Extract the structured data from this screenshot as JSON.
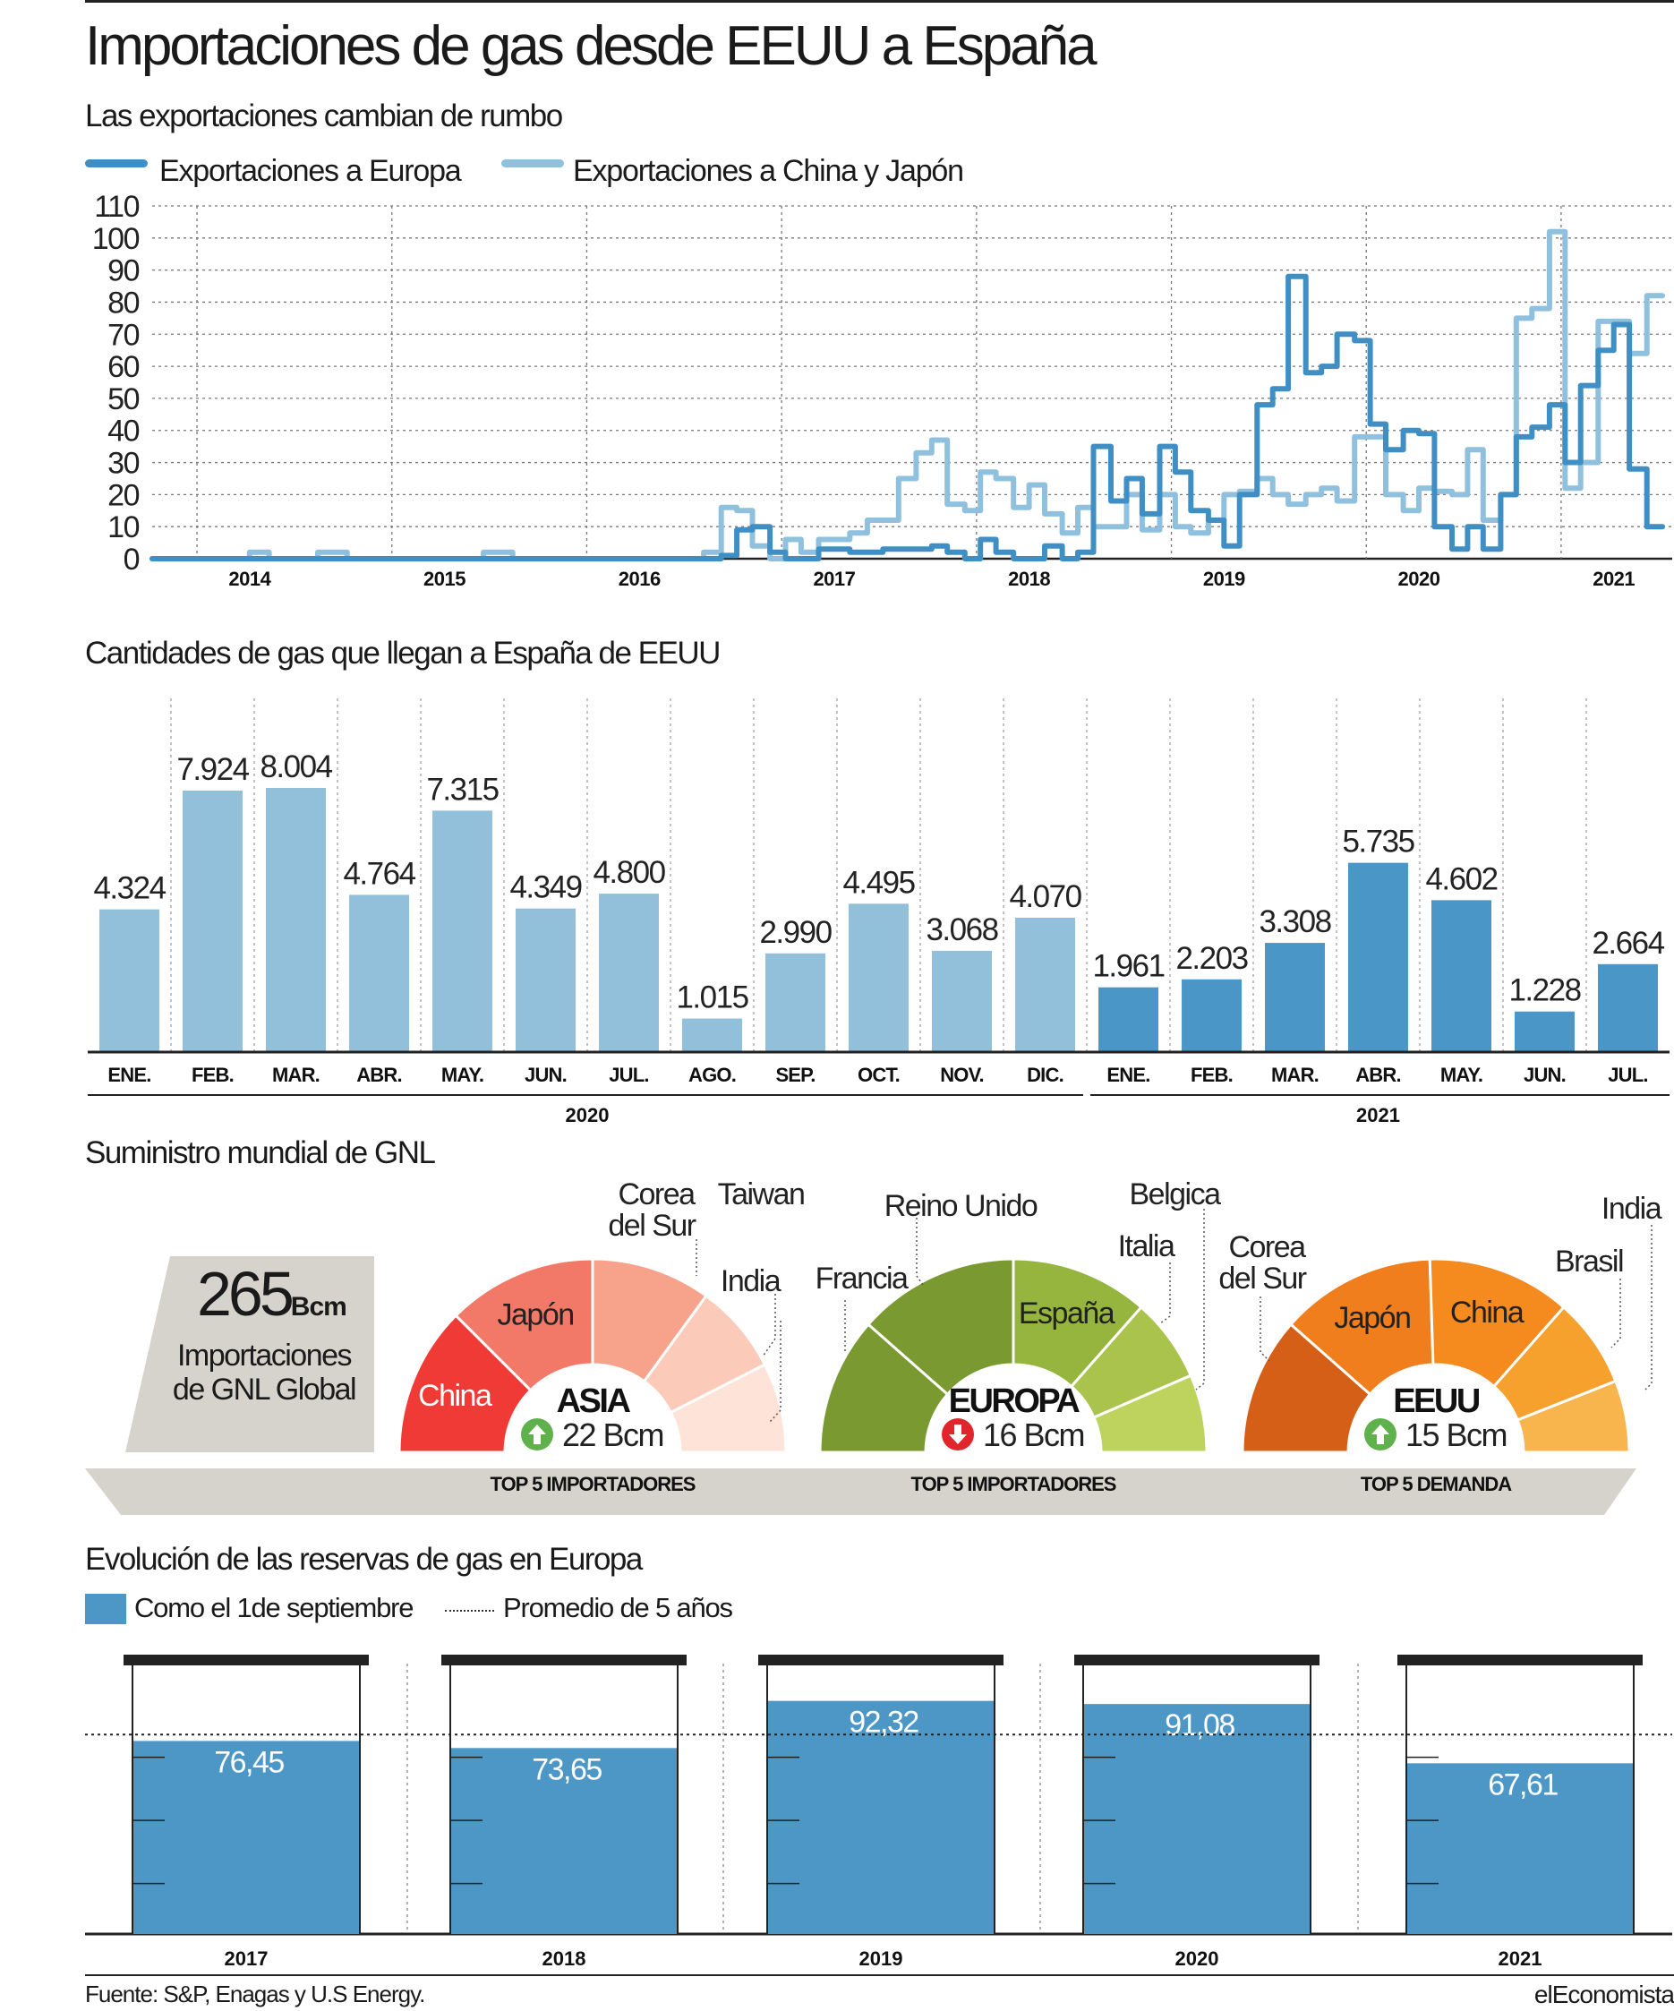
{
  "title": "Importaciones de gas desde EEUU a España",
  "colors": {
    "europa_line": "#3f8fc4",
    "china_japon_line": "#8fc0dd",
    "bar_2020": "#92bfda",
    "bar_2021": "#4a97c7",
    "asia": [
      "#ef3a36",
      "#f27867",
      "#f7a28b",
      "#fbcab9",
      "#fde3d8"
    ],
    "europa": [
      "#7a9a31",
      "#7a9a31",
      "#96b53e",
      "#a9c34c",
      "#bed35e"
    ],
    "eeuu": [
      "#d65f17",
      "#f07e1c",
      "#f58a1f",
      "#f6a02e",
      "#f9b54d"
    ],
    "reserve_fill": "#4d97c6",
    "panel_grey": "#d6d3cc"
  },
  "line_section": {
    "subtitle": "Las exportaciones cambian de rumbo",
    "legend": [
      {
        "label": "Exportaciones a Europa",
        "color": "#3f8fc4"
      },
      {
        "label": "Exportaciones a China y Japón",
        "color": "#8fc0dd"
      }
    ]
  },
  "bar_section": {
    "subtitle": "Cantidades de gas que llegan a España de EEUU"
  },
  "gnl_section": {
    "subtitle": "Suministro mundial de GNL",
    "global_value": "265",
    "global_unit": "Bcm",
    "global_label_1": "Importaciones",
    "global_label_2": "de GNL Global",
    "gauges": [
      {
        "name": "ASIA",
        "value": "22 Bcm",
        "trend": "up",
        "caption": "TOP 5 IMPORTADORES",
        "segments": [
          "China",
          "Japón",
          "Corea del Sur",
          "Taiwan",
          "India"
        ],
        "outer_labels": [
          "Corea",
          "del Sur",
          "Taiwan",
          "India"
        ]
      },
      {
        "name": "EUROPA",
        "value": "16 Bcm",
        "trend": "down",
        "caption": "TOP 5 IMPORTADORES",
        "segments": [
          "Francia",
          "Reino Unido",
          "España",
          "Italia",
          "Belgica"
        ],
        "outer_labels": [
          "Francia",
          "Reino Unido",
          "Italia",
          "Belgica"
        ]
      },
      {
        "name": "EEUU",
        "value": "15 Bcm",
        "trend": "up",
        "caption": "TOP 5 DEMANDA",
        "segments": [
          "Corea del Sur",
          "Japón",
          "China",
          "Brasil",
          "India"
        ],
        "outer_labels": [
          "Corea",
          "del Sur",
          "Brasil",
          "India"
        ]
      }
    ]
  },
  "reserves_section": {
    "subtitle": "Evolución de las reservas de gas en Europa",
    "legend_fill": "Como el 1de septiembre",
    "legend_avg": "Promedio de 5 años"
  },
  "footer": {
    "source": "Fuente: S&P, Enagas y U.S Energy.",
    "brand": "elEconomista"
  },
  "chart_data": [
    {
      "type": "line",
      "title": "Las exportaciones cambian de rumbo",
      "xlabel": "",
      "ylabel": "",
      "ylim": [
        0,
        110
      ],
      "yticks": [
        0,
        10,
        20,
        30,
        40,
        50,
        60,
        70,
        80,
        90,
        100,
        110
      ],
      "xticks": [
        "2014",
        "2015",
        "2016",
        "2017",
        "2018",
        "2019",
        "2020",
        "2021"
      ],
      "grid": true,
      "legend": "top-left",
      "x": [
        2013.5,
        2013.75,
        2013.83,
        2014.0,
        2014.1,
        2014.35,
        2014.5,
        2014.75,
        2015.0,
        2015.2,
        2015.35,
        2015.5,
        2015.75,
        2016.0,
        2016.25,
        2016.33,
        2016.42,
        2016.5,
        2016.58,
        2016.67,
        2016.75,
        2016.83,
        2016.92,
        2017.0,
        2017.08,
        2017.17,
        2017.25,
        2017.33,
        2017.42,
        2017.5,
        2017.58,
        2017.67,
        2017.75,
        2017.83,
        2017.92,
        2018.0,
        2018.08,
        2018.17,
        2018.25,
        2018.33,
        2018.42,
        2018.5,
        2018.58,
        2018.67,
        2018.75,
        2018.83,
        2018.92,
        2019.0,
        2019.08,
        2019.17,
        2019.25,
        2019.33,
        2019.42,
        2019.5,
        2019.58,
        2019.67,
        2019.75,
        2019.83,
        2019.92,
        2020.0,
        2020.08,
        2020.17,
        2020.25,
        2020.33,
        2020.42,
        2020.5,
        2020.58,
        2020.67,
        2020.75,
        2020.83,
        2020.92,
        2021.0,
        2021.08,
        2021.17,
        2021.25
      ],
      "series": [
        {
          "name": "Exportaciones a Europa",
          "color": "#3f8fc4",
          "values": [
            0,
            0,
            0,
            0,
            0,
            0,
            0,
            0,
            0,
            0,
            0,
            0,
            0,
            0,
            0,
            0,
            1,
            9,
            10,
            2,
            0,
            0,
            3,
            3,
            2,
            2,
            3,
            3,
            3,
            4,
            2,
            0,
            6,
            2,
            0,
            0,
            4,
            0,
            2,
            35,
            18,
            25,
            14,
            35,
            27,
            15,
            12,
            4,
            20,
            48,
            53,
            88,
            58,
            60,
            70,
            68,
            42,
            34,
            40,
            39,
            10,
            3,
            10,
            3,
            20,
            38,
            41,
            48,
            30,
            54,
            65,
            73,
            28,
            10,
            10
          ]
        },
        {
          "name": "Exportaciones a China y Japón",
          "color": "#8fc0dd",
          "values": [
            0,
            0,
            0,
            2,
            0,
            2,
            0,
            0,
            0,
            2,
            0,
            0,
            0,
            0,
            0,
            2,
            16,
            15,
            4,
            0,
            6,
            2,
            6,
            6,
            8,
            12,
            12,
            25,
            33,
            37,
            17,
            15,
            27,
            25,
            16,
            23,
            14,
            8,
            16,
            10,
            10,
            20,
            9,
            20,
            10,
            8,
            12,
            20,
            21,
            25,
            20,
            17,
            20,
            22,
            18,
            38,
            38,
            20,
            15,
            22,
            21,
            20,
            34,
            12,
            20,
            75,
            78,
            102,
            22,
            30,
            74,
            74,
            64,
            82,
            82
          ]
        }
      ]
    },
    {
      "type": "bar",
      "title": "Cantidades de gas que llegan a España de EEUU",
      "categories": [
        "ENE.",
        "FEB.",
        "MAR.",
        "ABR.",
        "MAY.",
        "JUN.",
        "JUL.",
        "AGO.",
        "SEP.",
        "OCT.",
        "NOV.",
        "DIC.",
        "ENE.",
        "FEB.",
        "MAR.",
        "ABR.",
        "MAY.",
        "JUN.",
        "JUL."
      ],
      "groups": [
        {
          "label": "2020",
          "count": 12
        },
        {
          "label": "2021",
          "count": 7
        }
      ],
      "values": [
        4324,
        7924,
        8004,
        4764,
        7315,
        4349,
        4800,
        1015,
        2990,
        4495,
        3068,
        4070,
        1961,
        2203,
        3308,
        5735,
        4602,
        1228,
        2664
      ],
      "labels": [
        "4.324",
        "7.924",
        "8.004",
        "4.764",
        "7.315",
        "4.349",
        "4.800",
        "1.015",
        "2.990",
        "4.495",
        "3.068",
        "4.070",
        "1.961",
        "2.203",
        "3.308",
        "5.735",
        "4.602",
        "1.228",
        "2.664"
      ],
      "ylim": [
        0,
        9000
      ],
      "xlabel": "",
      "ylabel": ""
    },
    {
      "type": "bar",
      "title": "Evolución de las reservas de gas en Europa",
      "categories": [
        "2017",
        "2018",
        "2019",
        "2020",
        "2021"
      ],
      "values": [
        76.45,
        73.65,
        92.32,
        91.08,
        67.61
      ],
      "labels": [
        "76,45",
        "73,65",
        "92,32",
        "91,08",
        "67,61"
      ],
      "reference_line": {
        "name": "Promedio de 5 años",
        "value": 79
      },
      "ylim": [
        0,
        100
      ],
      "xlabel": "",
      "ylabel": ""
    }
  ]
}
